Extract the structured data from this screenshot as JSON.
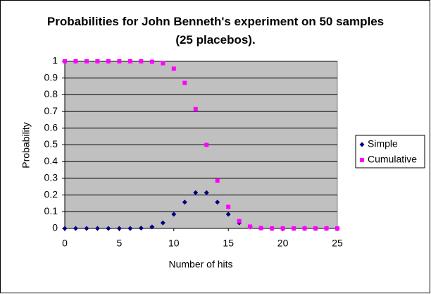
{
  "chart_data": {
    "type": "scatter",
    "title": "Probabilities for John Benneth's experiment on 50 samples (25 placebos).",
    "x_label": "Number of hits",
    "y_label": "Probability",
    "x": [
      0,
      1,
      2,
      3,
      4,
      5,
      6,
      7,
      8,
      9,
      10,
      11,
      12,
      13,
      14,
      15,
      16,
      17,
      18,
      19,
      20,
      21,
      22,
      23,
      24,
      25
    ],
    "series": [
      {
        "name": "Simple",
        "color": "#000080",
        "marker": "diamond",
        "values": [
          0,
          0,
          0,
          0,
          0,
          0,
          0,
          0.002,
          0.009,
          0.033,
          0.085,
          0.157,
          0.214,
          0.214,
          0.157,
          0.085,
          0.033,
          0.009,
          0.002,
          0,
          0,
          0,
          0,
          0,
          0,
          0
        ]
      },
      {
        "name": "Cumulative",
        "color": "#ff00ff",
        "marker": "square",
        "values": [
          1,
          1,
          1,
          1,
          1,
          1,
          1,
          1,
          0.998,
          0.989,
          0.956,
          0.871,
          0.714,
          0.5,
          0.286,
          0.129,
          0.044,
          0.011,
          0.002,
          0,
          0,
          0,
          0,
          0,
          0,
          0
        ]
      }
    ],
    "xlim": [
      0,
      25
    ],
    "xticks": [
      0,
      5,
      10,
      15,
      20,
      25
    ],
    "ylim": [
      0,
      1
    ],
    "yticks": [
      0,
      0.1,
      0.2,
      0.3,
      0.4,
      0.5,
      0.6,
      0.7,
      0.8,
      0.9,
      1
    ],
    "grid": true,
    "legend": "right"
  }
}
